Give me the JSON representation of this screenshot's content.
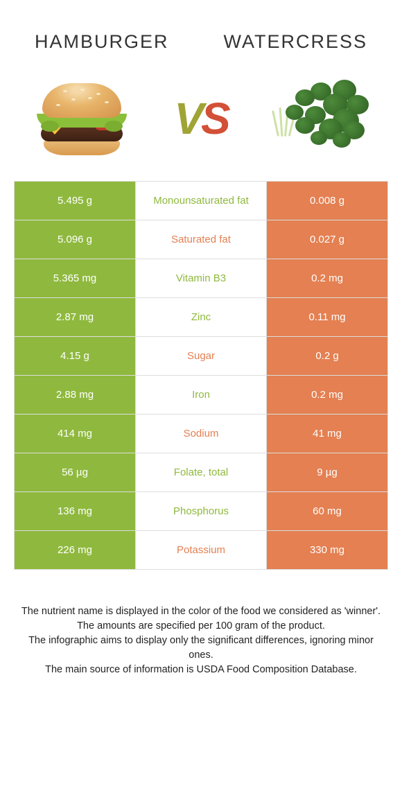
{
  "colors": {
    "left": "#8fb93e",
    "right": "#e48052",
    "vs_left": "#a0a436",
    "vs_right": "#d25037",
    "winner_left_text": "#8fb93e",
    "winner_right_text": "#e48052"
  },
  "titles": {
    "left": "HAMBURGER",
    "right": "WATERCRESS"
  },
  "vs": {
    "v": "V",
    "s": "S"
  },
  "rows": [
    {
      "left": "5.495 g",
      "mid": "Monounsaturated fat",
      "right": "0.008 g",
      "winner": "left"
    },
    {
      "left": "5.096 g",
      "mid": "Saturated fat",
      "right": "0.027 g",
      "winner": "right"
    },
    {
      "left": "5.365 mg",
      "mid": "Vitamin B3",
      "right": "0.2 mg",
      "winner": "left"
    },
    {
      "left": "2.87 mg",
      "mid": "Zinc",
      "right": "0.11 mg",
      "winner": "left"
    },
    {
      "left": "4.15 g",
      "mid": "Sugar",
      "right": "0.2 g",
      "winner": "right"
    },
    {
      "left": "2.88 mg",
      "mid": "Iron",
      "right": "0.2 mg",
      "winner": "left"
    },
    {
      "left": "414 mg",
      "mid": "Sodium",
      "right": "41 mg",
      "winner": "right"
    },
    {
      "left": "56 µg",
      "mid": "Folate, total",
      "right": "9 µg",
      "winner": "left"
    },
    {
      "left": "136 mg",
      "mid": "Phosphorus",
      "right": "60 mg",
      "winner": "left"
    },
    {
      "left": "226 mg",
      "mid": "Potassium",
      "right": "330 mg",
      "winner": "right"
    }
  ],
  "footer": {
    "l1": "The nutrient name is displayed in the color of the food we considered as 'winner'.",
    "l2": "The amounts are specified per 100 gram of the product.",
    "l3": "The infographic aims to display only the significant differences, ignoring minor ones.",
    "l4": "The main source of information is USDA Food Composition Database."
  }
}
